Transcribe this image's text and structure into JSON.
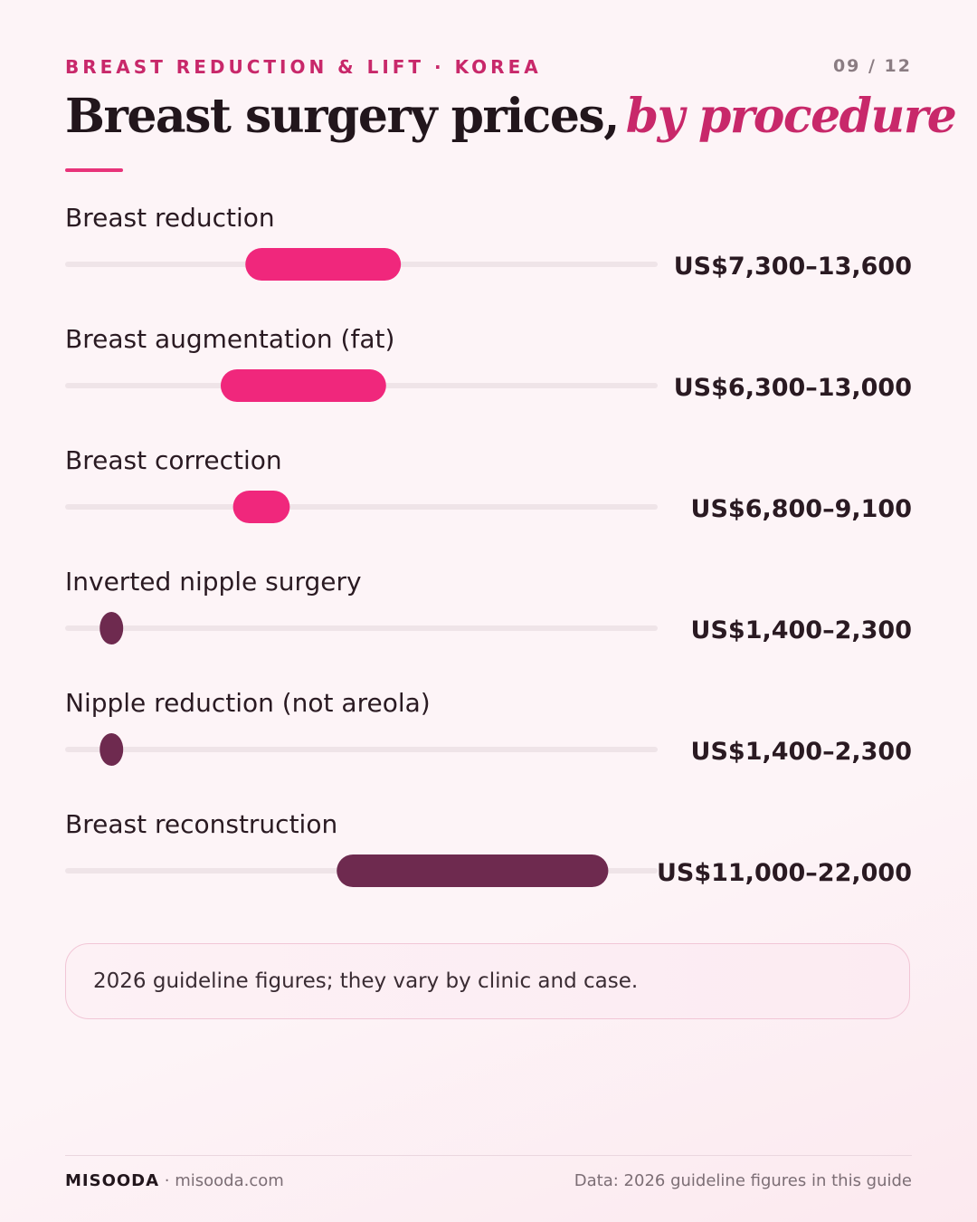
{
  "header": {
    "kicker": "BREAST REDUCTION & LIFT · KOREA",
    "page_indicator": "09 / 12",
    "title_main": "Breast surgery prices,",
    "title_accent": "by procedure"
  },
  "colors": {
    "accent": "#c8286a",
    "bar_pink": "#f0277c",
    "bar_plum": "#6e2a4f",
    "track": "#efe4e8"
  },
  "chart_data": {
    "type": "bar",
    "orientation": "horizontal-range",
    "xlim": [
      0,
      24000
    ],
    "unit": "US$",
    "grid": false,
    "categories": [
      "Breast reduction",
      "Breast augmentation (fat)",
      "Breast correction",
      "Inverted nipple surgery",
      "Nipple reduction (not areola)",
      "Breast reconstruction"
    ],
    "ranges": [
      {
        "low": 7300,
        "high": 13600,
        "label": "US$7,300–13,600",
        "color": "#f0277c"
      },
      {
        "low": 6300,
        "high": 13000,
        "label": "US$6,300–13,000",
        "color": "#f0277c"
      },
      {
        "low": 6800,
        "high": 9100,
        "label": "US$6,800–9,100",
        "color": "#f0277c"
      },
      {
        "low": 1400,
        "high": 2300,
        "label": "US$1,400–2,300",
        "color": "#6e2a4f"
      },
      {
        "low": 1400,
        "high": 2300,
        "label": "US$1,400–2,300",
        "color": "#6e2a4f"
      },
      {
        "low": 11000,
        "high": 22000,
        "label": "US$11,000–22,000",
        "color": "#6e2a4f"
      }
    ]
  },
  "footnote": "2026 guideline figures; they vary by clinic and case.",
  "footer": {
    "brand": "MISOODA",
    "site": "misooda.com",
    "source": "Data: 2026 guideline figures in this guide"
  }
}
